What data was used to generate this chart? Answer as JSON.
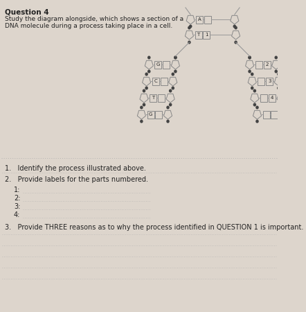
{
  "bg_color": "#ddd5cc",
  "title": "Question 4",
  "subtitle_line1": "Study the diagram alongside, which shows a section of a",
  "subtitle_line2": "DNA molecule during a process taking place in a cell.",
  "q1_text": "1.   Identify the process illustrated above.",
  "q2_text": "2.   Provide labels for the parts numbered.",
  "labels": [
    "1:",
    "2:",
    "3:",
    "4:"
  ],
  "q3_text": "3.   Provide THREE reasons as to why the process identified in QUESTION 1 is important.",
  "line_color": "#999999",
  "dot_color": "#444444",
  "text_color": "#222222",
  "dim_color": "#bbbbbb",
  "dna_bg": "#ddd5cc",
  "left_bases": [
    "G",
    "C",
    "T",
    "G"
  ],
  "right_labels": [
    "2",
    "3",
    "4",
    ""
  ],
  "top_row1_base": "A",
  "top_row2_base": "T",
  "top_row2_label": "1"
}
